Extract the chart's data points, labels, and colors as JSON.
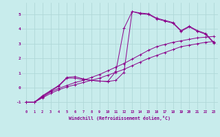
{
  "xlabel": "Windchill (Refroidissement éolien,°C)",
  "background_color": "#c8ecec",
  "grid_color": "#b0d8d8",
  "line_color": "#8b008b",
  "xlim": [
    -0.5,
    23.5
  ],
  "ylim": [
    -1.5,
    5.8
  ],
  "xticks": [
    0,
    1,
    2,
    3,
    4,
    5,
    6,
    7,
    8,
    9,
    10,
    11,
    12,
    13,
    14,
    15,
    16,
    17,
    18,
    19,
    20,
    21,
    22,
    23
  ],
  "yticks": [
    -1,
    0,
    1,
    2,
    3,
    4,
    5
  ],
  "lines": [
    {
      "x": [
        0,
        1,
        2,
        3,
        4,
        5,
        6,
        7,
        8,
        9,
        10,
        11,
        12,
        13,
        14,
        15,
        16,
        17,
        18,
        19,
        20,
        21,
        22,
        23
      ],
      "y": [
        -1,
        -1,
        -0.7,
        -0.4,
        -0.15,
        0.05,
        0.2,
        0.35,
        0.5,
        0.65,
        0.85,
        1.05,
        1.25,
        1.5,
        1.75,
        2.0,
        2.2,
        2.4,
        2.6,
        2.8,
        2.9,
        3.0,
        3.1,
        3.15
      ]
    },
    {
      "x": [
        0,
        1,
        2,
        3,
        4,
        5,
        6,
        7,
        8,
        9,
        10,
        11,
        12,
        13,
        14,
        15,
        16,
        17,
        18,
        19,
        20,
        21,
        22,
        23
      ],
      "y": [
        -1,
        -1,
        -0.65,
        -0.3,
        -0.05,
        0.15,
        0.35,
        0.5,
        0.7,
        0.9,
        1.15,
        1.4,
        1.65,
        1.95,
        2.25,
        2.55,
        2.8,
        2.95,
        3.1,
        3.2,
        3.3,
        3.4,
        3.45,
        3.5
      ]
    },
    {
      "x": [
        0,
        1,
        2,
        3,
        4,
        5,
        6,
        7,
        8,
        9,
        10,
        11,
        12,
        13,
        14,
        15,
        16,
        17,
        18,
        19,
        20,
        21,
        22,
        23
      ],
      "y": [
        -1,
        -1,
        -0.6,
        -0.25,
        0.1,
        0.65,
        0.65,
        0.55,
        0.5,
        0.45,
        0.42,
        1.1,
        4.05,
        5.2,
        5.1,
        5.05,
        4.75,
        4.6,
        4.45,
        3.9,
        4.2,
        3.9,
        3.7,
        3.1
      ]
    },
    {
      "x": [
        0,
        1,
        2,
        3,
        4,
        5,
        6,
        7,
        8,
        9,
        10,
        11,
        12,
        13,
        14,
        15,
        16,
        17,
        18,
        19,
        20,
        21,
        22,
        23
      ],
      "y": [
        -1,
        -1,
        -0.55,
        -0.2,
        0.15,
        0.7,
        0.75,
        0.6,
        0.5,
        0.45,
        0.42,
        0.5,
        1.05,
        5.2,
        5.05,
        5.0,
        4.7,
        4.55,
        4.4,
        3.85,
        4.15,
        3.85,
        3.65,
        3.05
      ]
    }
  ]
}
